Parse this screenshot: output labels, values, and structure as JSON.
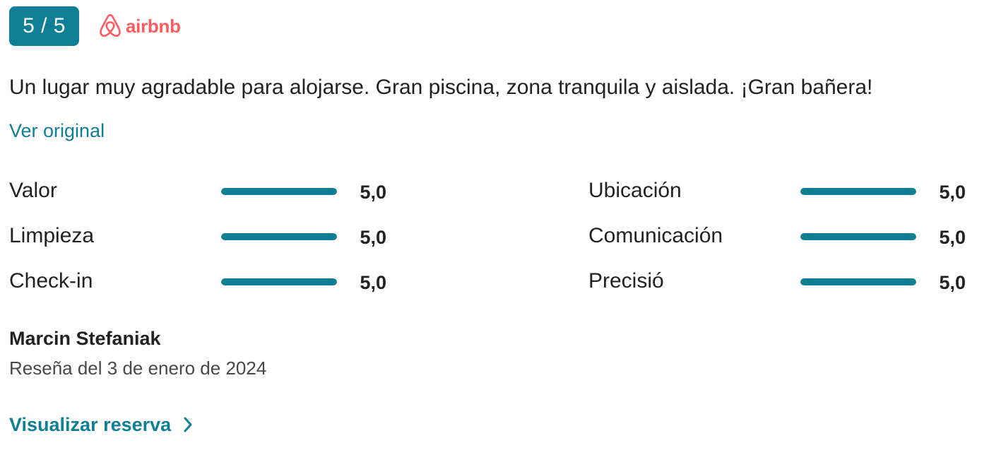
{
  "header": {
    "score": "5 / 5",
    "brand_name": "airbnb",
    "brand_color": "#ff5a5f",
    "accent_color": "#0f7f95"
  },
  "review": {
    "text": "Un lugar muy agradable para alojarse. Gran piscina, zona tranquila y aislada. ¡Gran bañera!",
    "original_link": "Ver original"
  },
  "ratings": {
    "left": [
      {
        "label": "Valor",
        "value": "5,0",
        "score": 5.0,
        "max": 5
      },
      {
        "label": "Limpieza",
        "value": "5,0",
        "score": 5.0,
        "max": 5
      },
      {
        "label": "Check-in",
        "value": "5,0",
        "score": 5.0,
        "max": 5
      }
    ],
    "right": [
      {
        "label": "Ubicación",
        "value": "5,0",
        "score": 5.0,
        "max": 5
      },
      {
        "label": "Comunicación",
        "value": "5,0",
        "score": 5.0,
        "max": 5
      },
      {
        "label": "Precisió",
        "value": "5,0",
        "score": 5.0,
        "max": 5
      }
    ]
  },
  "reviewer": {
    "name": "Marcin Stefaniak",
    "date": "Reseña del 3 de enero de 2024"
  },
  "booking_link": {
    "label": "Visualizar reserva",
    "icon": "chevron-right-icon"
  },
  "icons": {
    "brand_logo": "airbnb-logo-icon"
  }
}
